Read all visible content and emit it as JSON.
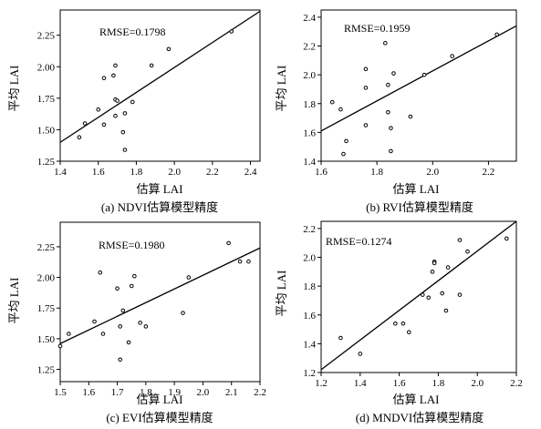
{
  "chart_data": [
    {
      "type": "scatter",
      "caption": "(a) NDVI估算模型精度",
      "annotation": "RMSE=0.1798",
      "xlabel": "估算 LAI",
      "ylabel": "平均 LAI",
      "xlim": [
        1.4,
        2.45
      ],
      "ylim": [
        1.25,
        2.45
      ],
      "xticks": [
        "1.4",
        "1.6",
        "1.8",
        "2.0",
        "2.2",
        "2.4"
      ],
      "yticks": [
        "1.25",
        "1.50",
        "1.75",
        "2.00",
        "2.25"
      ],
      "grid": false,
      "points": [
        {
          "x": 1.5,
          "y": 1.44
        },
        {
          "x": 1.53,
          "y": 1.55
        },
        {
          "x": 1.6,
          "y": 1.66
        },
        {
          "x": 1.63,
          "y": 1.54
        },
        {
          "x": 1.63,
          "y": 1.91
        },
        {
          "x": 1.68,
          "y": 1.93
        },
        {
          "x": 1.69,
          "y": 2.01
        },
        {
          "x": 1.69,
          "y": 1.74
        },
        {
          "x": 1.69,
          "y": 1.61
        },
        {
          "x": 1.7,
          "y": 1.73
        },
        {
          "x": 1.73,
          "y": 1.48
        },
        {
          "x": 1.74,
          "y": 1.63
        },
        {
          "x": 1.74,
          "y": 1.34
        },
        {
          "x": 1.78,
          "y": 1.72
        },
        {
          "x": 1.88,
          "y": 2.01
        },
        {
          "x": 1.97,
          "y": 2.14
        },
        {
          "x": 2.3,
          "y": 2.28
        }
      ],
      "fit_line": [
        [
          1.4,
          1.4
        ],
        [
          2.45,
          2.44
        ]
      ]
    },
    {
      "type": "scatter",
      "caption": "(b) RVI估算模型精度",
      "annotation": "RMSE=0.1959",
      "xlabel": "估算 LAI",
      "ylabel": "平均 LAI",
      "xlim": [
        1.6,
        2.3
      ],
      "ylim": [
        1.4,
        2.45
      ],
      "xticks": [
        "1.6",
        "1.8",
        "2.0",
        "2.2"
      ],
      "yticks": [
        "1.4",
        "1.6",
        "1.8",
        "2.0",
        "2.2",
        "2.4"
      ],
      "grid": false,
      "points": [
        {
          "x": 1.64,
          "y": 1.81
        },
        {
          "x": 1.67,
          "y": 1.76
        },
        {
          "x": 1.68,
          "y": 1.45
        },
        {
          "x": 1.69,
          "y": 1.54
        },
        {
          "x": 1.76,
          "y": 2.04
        },
        {
          "x": 1.76,
          "y": 1.91
        },
        {
          "x": 1.76,
          "y": 1.65
        },
        {
          "x": 1.83,
          "y": 2.22
        },
        {
          "x": 1.84,
          "y": 1.93
        },
        {
          "x": 1.84,
          "y": 1.74
        },
        {
          "x": 1.85,
          "y": 1.63
        },
        {
          "x": 1.85,
          "y": 1.47
        },
        {
          "x": 1.86,
          "y": 2.01
        },
        {
          "x": 1.92,
          "y": 1.71
        },
        {
          "x": 1.97,
          "y": 2.0
        },
        {
          "x": 2.07,
          "y": 2.13
        },
        {
          "x": 2.23,
          "y": 2.28
        }
      ],
      "fit_line": [
        [
          1.6,
          1.61
        ],
        [
          2.3,
          2.34
        ]
      ]
    },
    {
      "type": "scatter",
      "caption": "(c) EVI估算模型精度",
      "annotation": "RMSE=0.1980",
      "xlabel": "估算 LAI",
      "ylabel": "平均 LAI",
      "xlim": [
        1.5,
        2.2
      ],
      "ylim": [
        1.15,
        2.45
      ],
      "xticks": [
        "1.5",
        "1.6",
        "1.7",
        "1.8",
        "1.9",
        "2.0",
        "2.1",
        "2.2"
      ],
      "yticks": [
        "1.25",
        "1.50",
        "1.75",
        "2.00",
        "2.25"
      ],
      "grid": false,
      "points": [
        {
          "x": 1.5,
          "y": 1.44
        },
        {
          "x": 1.53,
          "y": 1.54
        },
        {
          "x": 1.62,
          "y": 1.64
        },
        {
          "x": 1.64,
          "y": 2.04
        },
        {
          "x": 1.65,
          "y": 1.54
        },
        {
          "x": 1.7,
          "y": 1.91
        },
        {
          "x": 1.71,
          "y": 1.33
        },
        {
          "x": 1.71,
          "y": 1.6
        },
        {
          "x": 1.72,
          "y": 1.73
        },
        {
          "x": 1.74,
          "y": 1.47
        },
        {
          "x": 1.75,
          "y": 1.93
        },
        {
          "x": 1.76,
          "y": 2.01
        },
        {
          "x": 1.78,
          "y": 1.63
        },
        {
          "x": 1.8,
          "y": 1.6
        },
        {
          "x": 1.93,
          "y": 1.71
        },
        {
          "x": 1.95,
          "y": 2.0
        },
        {
          "x": 2.09,
          "y": 2.28
        },
        {
          "x": 2.13,
          "y": 2.13
        },
        {
          "x": 2.16,
          "y": 2.13
        }
      ],
      "fit_line": [
        [
          1.5,
          1.46
        ],
        [
          2.2,
          2.24
        ]
      ]
    },
    {
      "type": "scatter",
      "caption": "(d) MNDVI估算模型精度",
      "annotation": "RMSE=0.1274",
      "xlabel": "估算 LAI",
      "ylabel": "平均 LAI",
      "xlim": [
        1.2,
        2.2
      ],
      "ylim": [
        1.2,
        2.25
      ],
      "xticks": [
        "1.2",
        "1.4",
        "1.6",
        "1.8",
        "2.0",
        "2.2"
      ],
      "yticks": [
        "1.2",
        "1.4",
        "1.6",
        "1.8",
        "2.0",
        "2.2"
      ],
      "grid": false,
      "points": [
        {
          "x": 1.3,
          "y": 1.44
        },
        {
          "x": 1.4,
          "y": 1.33
        },
        {
          "x": 1.58,
          "y": 1.54
        },
        {
          "x": 1.62,
          "y": 1.54
        },
        {
          "x": 1.65,
          "y": 1.48
        },
        {
          "x": 1.72,
          "y": 1.74
        },
        {
          "x": 1.75,
          "y": 1.72
        },
        {
          "x": 1.77,
          "y": 1.9
        },
        {
          "x": 1.78,
          "y": 1.97
        },
        {
          "x": 1.78,
          "y": 1.96
        },
        {
          "x": 1.82,
          "y": 1.75
        },
        {
          "x": 1.84,
          "y": 1.63
        },
        {
          "x": 1.85,
          "y": 1.93
        },
        {
          "x": 1.91,
          "y": 2.12
        },
        {
          "x": 1.91,
          "y": 1.74
        },
        {
          "x": 1.95,
          "y": 2.04
        },
        {
          "x": 2.15,
          "y": 2.13
        }
      ],
      "fit_line": [
        [
          1.2,
          1.22
        ],
        [
          2.2,
          2.25
        ]
      ]
    }
  ]
}
